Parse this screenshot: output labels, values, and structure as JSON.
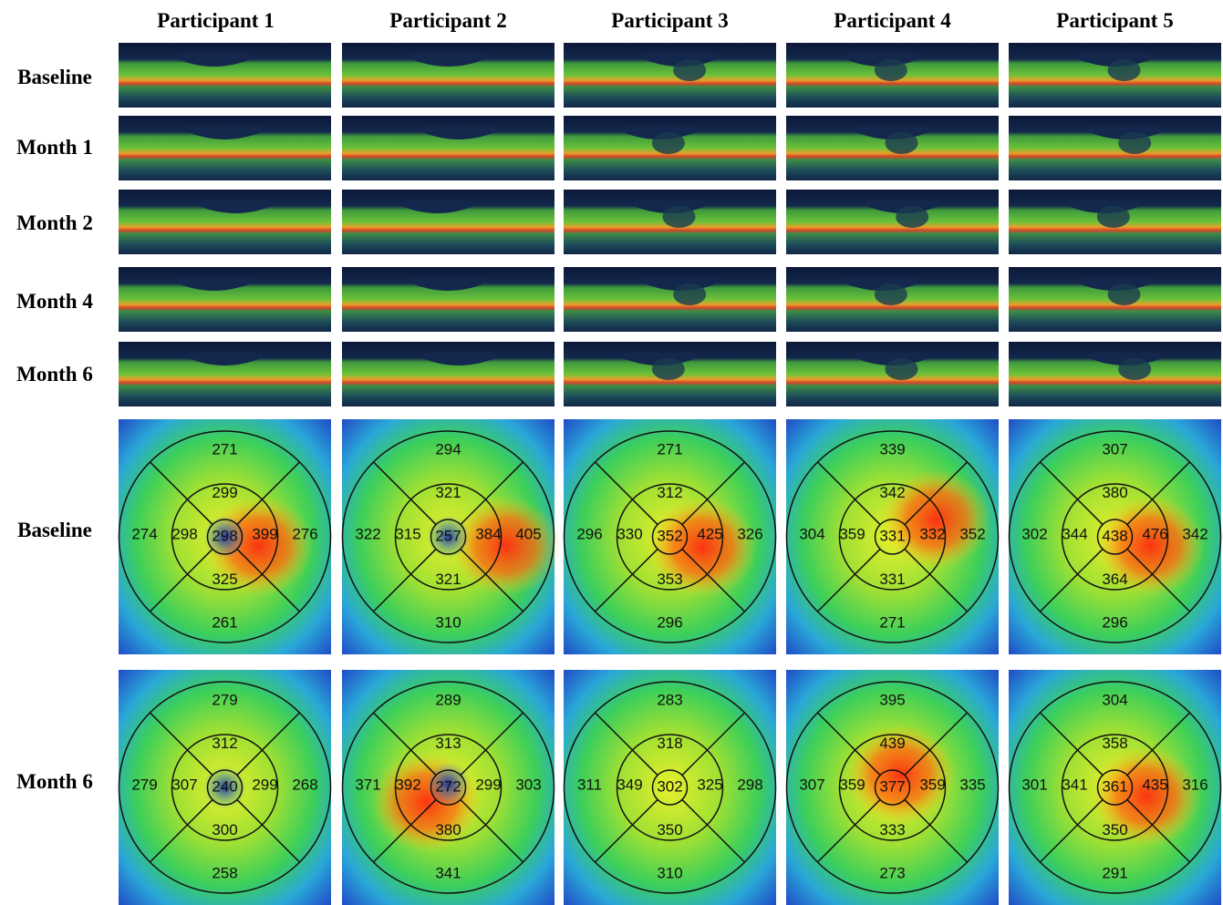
{
  "column_headers": [
    "Participant 1",
    "Participant 2",
    "Participant 3",
    "Participant 4",
    "Participant 5"
  ],
  "oct_row_labels": [
    "Baseline",
    "Month 1",
    "Month 2",
    "Month 4",
    "Month 6"
  ],
  "map_row_labels": [
    "Baseline",
    "Month 6"
  ],
  "maps": [
    [
      {
        "outer_top": "271",
        "inner_top": "299",
        "outer_left": "274",
        "inner_left": "298",
        "center": "298",
        "inner_right": "399",
        "outer_right": "276",
        "inner_bottom": "325",
        "outer_bottom": "261"
      },
      {
        "outer_top": "294",
        "inner_top": "321",
        "outer_left": "322",
        "inner_left": "315",
        "center": "257",
        "inner_right": "384",
        "outer_right": "405",
        "inner_bottom": "321",
        "outer_bottom": "310"
      },
      {
        "outer_top": "271",
        "inner_top": "312",
        "outer_left": "296",
        "inner_left": "330",
        "center": "352",
        "inner_right": "425",
        "outer_right": "326",
        "inner_bottom": "353",
        "outer_bottom": "296"
      },
      {
        "outer_top": "339",
        "inner_top": "342",
        "outer_left": "304",
        "inner_left": "359",
        "center": "331",
        "inner_right": "332",
        "outer_right": "352",
        "inner_bottom": "331",
        "outer_bottom": "271"
      },
      {
        "outer_top": "307",
        "inner_top": "380",
        "outer_left": "302",
        "inner_left": "344",
        "center": "438",
        "inner_right": "476",
        "outer_right": "342",
        "inner_bottom": "364",
        "outer_bottom": "296"
      }
    ],
    [
      {
        "outer_top": "279",
        "inner_top": "312",
        "outer_left": "279",
        "inner_left": "307",
        "center": "240",
        "inner_right": "299",
        "outer_right": "268",
        "inner_bottom": "300",
        "outer_bottom": "258"
      },
      {
        "outer_top": "289",
        "inner_top": "313",
        "outer_left": "371",
        "inner_left": "392",
        "center": "272",
        "inner_right": "299",
        "outer_right": "303",
        "inner_bottom": "380",
        "outer_bottom": "341"
      },
      {
        "outer_top": "283",
        "inner_top": "318",
        "outer_left": "311",
        "inner_left": "349",
        "center": "302",
        "inner_right": "325",
        "outer_right": "298",
        "inner_bottom": "350",
        "outer_bottom": "310"
      },
      {
        "outer_top": "395",
        "inner_top": "439",
        "outer_left": "307",
        "inner_left": "359",
        "center": "377",
        "inner_right": "359",
        "outer_right": "335",
        "inner_bottom": "333",
        "outer_bottom": "273"
      },
      {
        "outer_top": "304",
        "inner_top": "358",
        "outer_left": "301",
        "inner_left": "341",
        "center": "361",
        "inner_right": "435",
        "outer_right": "316",
        "inner_bottom": "350",
        "outer_bottom": "291"
      }
    ]
  ]
}
